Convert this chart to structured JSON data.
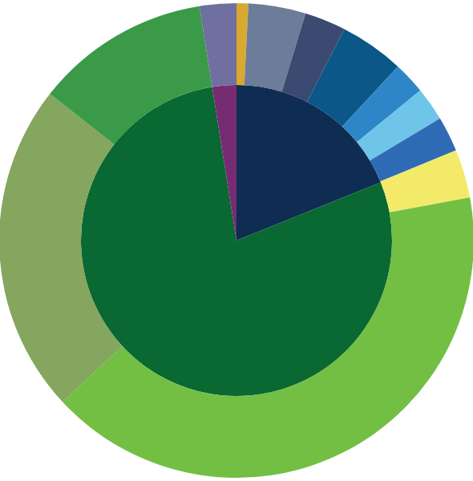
{
  "chart_data": [
    {
      "type": "pie",
      "categories": [
        null,
        null,
        null
      ],
      "values": [
        18.9,
        78.6,
        2.5
      ],
      "colors": [
        "#0f2d52",
        "#0a6833",
        "#762c70"
      ]
    },
    {
      "type": "donut",
      "categories": [
        null,
        null,
        null,
        null,
        null,
        null,
        null,
        null,
        null,
        null,
        null,
        null
      ],
      "values": [
        0.8,
        3.9,
        2.8,
        4.4,
        2.2,
        2.3,
        2.4,
        3.3,
        41,
        22.5,
        11.9,
        2.5
      ],
      "colors": [
        "#d9a82e",
        "#6b7d99",
        "#3b4a70",
        "#0b5788",
        "#2e86c8",
        "#6fc5e8",
        "#2f6bb5",
        "#f3ea6a",
        "#72bf44",
        "#84a65e",
        "#3a9a48",
        "#6f6fa0"
      ]
    }
  ]
}
